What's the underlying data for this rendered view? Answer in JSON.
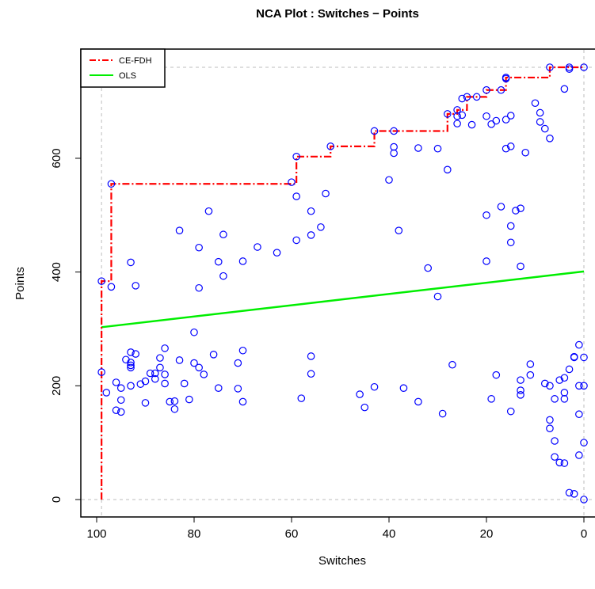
{
  "chart_data": {
    "type": "scatter",
    "title": "NCA Plot : Switches − Points",
    "xlabel": "Switches",
    "ylabel": "Points",
    "xlim": [
      100,
      0
    ],
    "ylim": [
      0,
      760
    ],
    "xticks": [
      100,
      80,
      60,
      40,
      20,
      0
    ],
    "yticks": [
      0,
      200,
      400,
      600
    ],
    "reference_lines": {
      "x": [
        99,
        0
      ],
      "y": [
        0,
        760
      ]
    },
    "legend": {
      "position": "top-left",
      "entries": [
        {
          "name": "CE-FDH",
          "color": "#ff0000",
          "style": "dash-dot"
        },
        {
          "name": "OLS",
          "color": "#00ee00",
          "style": "solid"
        }
      ]
    },
    "colors": {
      "points": "#0000ff",
      "ce_fdh": "#ff0000",
      "ols": "#00ee00",
      "reference": "#bebebe"
    },
    "ols_line": {
      "x": [
        99,
        0
      ],
      "y": [
        303,
        401
      ]
    },
    "ce_fdh_line": {
      "x": [
        99,
        99,
        97,
        97,
        59,
        59,
        52,
        52,
        43,
        43,
        28,
        28,
        26,
        26,
        24,
        24,
        20,
        20,
        16,
        16,
        7,
        7,
        0
      ],
      "y": [
        0,
        384,
        384,
        555,
        555,
        603,
        603,
        621,
        621,
        648,
        648,
        678,
        678,
        685,
        685,
        708,
        708,
        720,
        720,
        742,
        742,
        760,
        760
      ]
    },
    "points": [
      [
        99,
        384
      ],
      [
        99,
        224
      ],
      [
        98,
        188
      ],
      [
        97,
        555
      ],
      [
        97,
        374
      ],
      [
        96,
        206
      ],
      [
        96,
        157
      ],
      [
        95,
        175
      ],
      [
        95,
        196
      ],
      [
        95,
        154
      ],
      [
        94,
        246
      ],
      [
        93,
        417
      ],
      [
        93,
        259
      ],
      [
        93,
        241
      ],
      [
        93,
        236
      ],
      [
        93,
        232
      ],
      [
        93,
        200
      ],
      [
        92,
        376
      ],
      [
        92,
        256
      ],
      [
        91,
        203
      ],
      [
        90,
        170
      ],
      [
        90,
        208
      ],
      [
        89,
        222
      ],
      [
        88,
        222
      ],
      [
        88,
        212
      ],
      [
        87,
        249
      ],
      [
        87,
        232
      ],
      [
        86,
        266
      ],
      [
        86,
        220
      ],
      [
        86,
        204
      ],
      [
        85,
        172
      ],
      [
        84,
        173
      ],
      [
        84,
        159
      ],
      [
        83,
        473
      ],
      [
        83,
        245
      ],
      [
        82,
        204
      ],
      [
        81,
        176
      ],
      [
        80,
        294
      ],
      [
        80,
        240
      ],
      [
        79,
        443
      ],
      [
        79,
        372
      ],
      [
        79,
        232
      ],
      [
        78,
        220
      ],
      [
        77,
        507
      ],
      [
        76,
        255
      ],
      [
        75,
        418
      ],
      [
        75,
        196
      ],
      [
        74,
        466
      ],
      [
        74,
        393
      ],
      [
        71,
        195
      ],
      [
        71,
        240
      ],
      [
        70,
        419
      ],
      [
        70,
        262
      ],
      [
        70,
        172
      ],
      [
        67,
        444
      ],
      [
        63,
        434
      ],
      [
        60,
        558
      ],
      [
        59,
        603
      ],
      [
        59,
        533
      ],
      [
        59,
        456
      ],
      [
        58,
        178
      ],
      [
        56,
        507
      ],
      [
        56,
        465
      ],
      [
        56,
        252
      ],
      [
        56,
        221
      ],
      [
        54,
        479
      ],
      [
        53,
        538
      ],
      [
        52,
        621
      ],
      [
        46,
        185
      ],
      [
        45,
        162
      ],
      [
        43,
        648
      ],
      [
        43,
        198
      ],
      [
        40,
        562
      ],
      [
        39,
        648
      ],
      [
        39,
        620
      ],
      [
        39,
        609
      ],
      [
        38,
        473
      ],
      [
        37,
        196
      ],
      [
        34,
        618
      ],
      [
        34,
        172
      ],
      [
        32,
        407
      ],
      [
        30,
        617
      ],
      [
        30,
        357
      ],
      [
        29,
        151
      ],
      [
        28,
        678
      ],
      [
        28,
        580
      ],
      [
        27,
        237
      ],
      [
        26,
        685
      ],
      [
        26,
        674
      ],
      [
        26,
        661
      ],
      [
        25,
        705
      ],
      [
        25,
        676
      ],
      [
        24,
        708
      ],
      [
        23,
        659
      ],
      [
        22,
        708
      ],
      [
        20,
        720
      ],
      [
        20,
        674
      ],
      [
        20,
        500
      ],
      [
        20,
        419
      ],
      [
        19,
        177
      ],
      [
        19,
        660
      ],
      [
        18,
        666
      ],
      [
        18,
        219
      ],
      [
        17,
        720
      ],
      [
        17,
        515
      ],
      [
        16,
        742
      ],
      [
        16,
        740
      ],
      [
        16,
        668
      ],
      [
        16,
        617
      ],
      [
        15,
        675
      ],
      [
        15,
        621
      ],
      [
        15,
        481
      ],
      [
        15,
        452
      ],
      [
        15,
        155
      ],
      [
        14,
        508
      ],
      [
        13,
        512
      ],
      [
        13,
        410
      ],
      [
        13,
        210
      ],
      [
        13,
        192
      ],
      [
        13,
        184
      ],
      [
        12,
        610
      ],
      [
        11,
        219
      ],
      [
        11,
        238
      ],
      [
        10,
        697
      ],
      [
        9,
        680
      ],
      [
        9,
        664
      ],
      [
        8,
        652
      ],
      [
        8,
        204
      ],
      [
        7,
        760
      ],
      [
        7,
        635
      ],
      [
        7,
        200
      ],
      [
        7,
        140
      ],
      [
        7,
        125
      ],
      [
        6,
        103
      ],
      [
        6,
        75
      ],
      [
        6,
        177
      ],
      [
        5,
        210
      ],
      [
        5,
        65
      ],
      [
        4,
        722
      ],
      [
        4,
        188
      ],
      [
        4,
        214
      ],
      [
        4,
        177
      ],
      [
        4,
        64
      ],
      [
        3,
        229
      ],
      [
        3,
        12
      ],
      [
        3,
        760
      ],
      [
        3,
        757
      ],
      [
        2,
        250
      ],
      [
        2,
        251
      ],
      [
        2,
        10
      ],
      [
        1,
        272
      ],
      [
        1,
        200
      ],
      [
        1,
        150
      ],
      [
        1,
        78
      ],
      [
        0,
        760
      ],
      [
        0,
        250
      ],
      [
        0,
        200
      ],
      [
        0,
        100
      ],
      [
        0,
        0
      ]
    ]
  }
}
